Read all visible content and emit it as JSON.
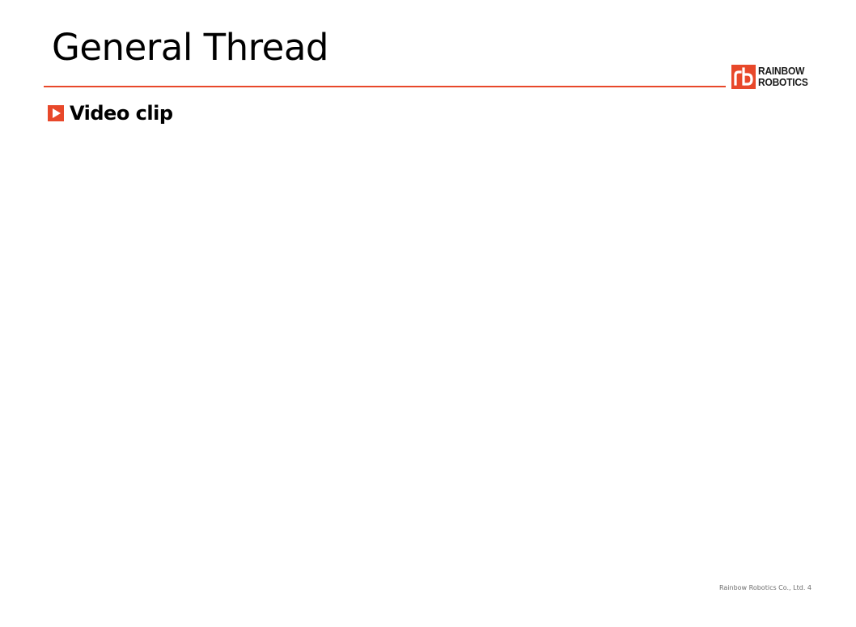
{
  "slide": {
    "title": "General Thread",
    "section_heading": "Video clip",
    "footer": "Rainbow Robotics Co., Ltd. 4"
  },
  "logo": {
    "line1": "RAINBOW",
    "line2": "ROBOTICS",
    "icon": "rb-logo-mark"
  },
  "icons": {
    "bullet": "play-triangle-icon"
  },
  "colors": {
    "accent": "#e8482a",
    "text": "#000000",
    "footer_text": "#6e6e6e"
  }
}
